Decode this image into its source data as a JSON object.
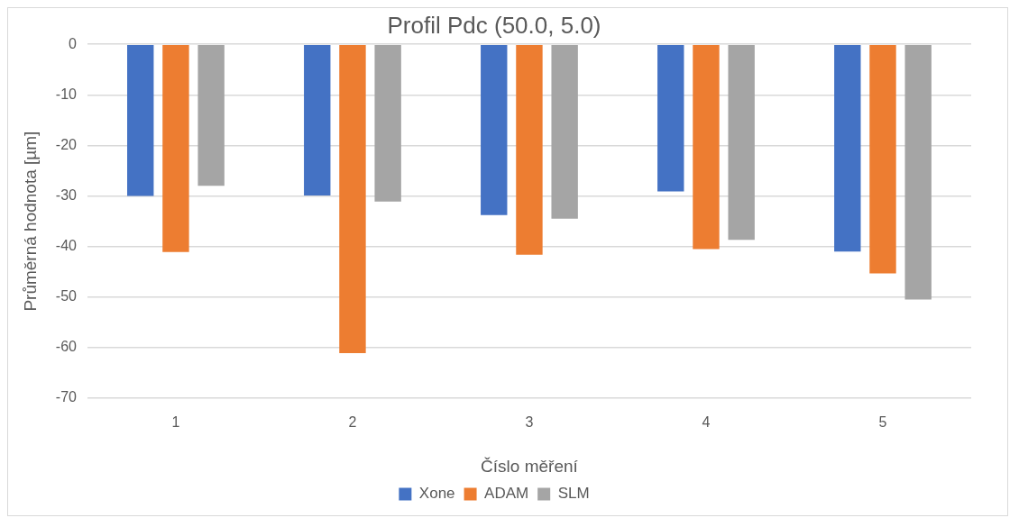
{
  "chart_data": {
    "type": "bar",
    "title": "Profil Pdc (50.0, 5.0)",
    "xlabel": "Číslo měření",
    "ylabel": "Průměrná hodnota [µm]",
    "categories": [
      "1",
      "2",
      "3",
      "4",
      "5"
    ],
    "series": [
      {
        "name": "Xone",
        "color": "#4472c4",
        "values": [
          -30.0,
          -29.9,
          -33.8,
          -29.1,
          -41.0
        ]
      },
      {
        "name": "ADAM",
        "color": "#ed7d31",
        "values": [
          -41.1,
          -61.1,
          -41.6,
          -40.5,
          -45.3
        ]
      },
      {
        "name": "SLM",
        "color": "#a5a5a5",
        "values": [
          -28.0,
          -31.1,
          -34.5,
          -38.7,
          -50.5
        ]
      }
    ],
    "ylim": [
      -70,
      0
    ],
    "yticks": [
      -70,
      -60,
      -50,
      -40,
      -30,
      -20,
      -10,
      0
    ],
    "grid": "y",
    "legend": "bottom"
  }
}
